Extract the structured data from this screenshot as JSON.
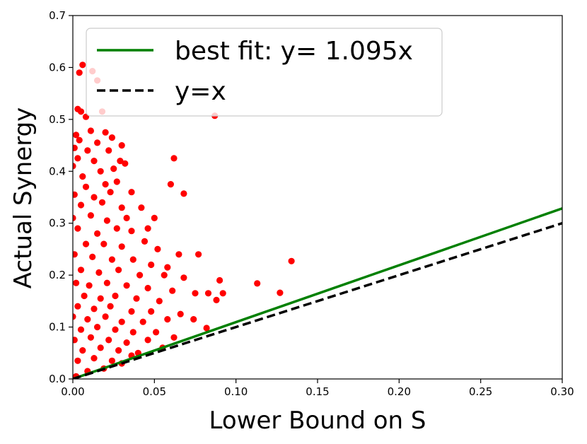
{
  "chart_data": {
    "type": "scatter",
    "xlabel": "Lower Bound on S",
    "ylabel": "Actual Synergy",
    "xlim": [
      0.0,
      0.3
    ],
    "ylim": [
      0.0,
      0.7
    ],
    "x_ticks": [
      "0.00",
      "0.05",
      "0.10",
      "0.15",
      "0.20",
      "0.25",
      "0.30"
    ],
    "y_ticks": [
      "0.0",
      "0.1",
      "0.2",
      "0.3",
      "0.4",
      "0.5",
      "0.6",
      "0.7"
    ],
    "grid": false,
    "legend_position": "top-left",
    "colors": {
      "points": "#ff0000",
      "best_fit": "#008000",
      "identity": "#000000"
    },
    "lines": [
      {
        "name": "best fit: y= 1.095x",
        "slope": 1.095,
        "style": "solid",
        "color": "#008000"
      },
      {
        "name": "y=x",
        "slope": 1.0,
        "style": "dashed",
        "color": "#000000"
      }
    ],
    "series": [
      {
        "name": "points",
        "color": "#ff0000",
        "points": [
          [
            0.006,
            0.605
          ],
          [
            0.004,
            0.59
          ],
          [
            0.012,
            0.593
          ],
          [
            0.015,
            0.575
          ],
          [
            0.003,
            0.52
          ],
          [
            0.005,
            0.515
          ],
          [
            0.018,
            0.515
          ],
          [
            0.008,
            0.505
          ],
          [
            0.002,
            0.47
          ],
          [
            0.011,
            0.478
          ],
          [
            0.02,
            0.475
          ],
          [
            0.004,
            0.46
          ],
          [
            0.024,
            0.465
          ],
          [
            0.001,
            0.445
          ],
          [
            0.009,
            0.44
          ],
          [
            0.022,
            0.44
          ],
          [
            0.03,
            0.45
          ],
          [
            0.015,
            0.455
          ],
          [
            0.003,
            0.425
          ],
          [
            0.013,
            0.42
          ],
          [
            0.029,
            0.42
          ],
          [
            0.0,
            0.41
          ],
          [
            0.006,
            0.39
          ],
          [
            0.017,
            0.4
          ],
          [
            0.025,
            0.405
          ],
          [
            0.032,
            0.415
          ],
          [
            0.062,
            0.425
          ],
          [
            0.008,
            0.37
          ],
          [
            0.02,
            0.375
          ],
          [
            0.027,
            0.38
          ],
          [
            0.06,
            0.375
          ],
          [
            0.001,
            0.355
          ],
          [
            0.013,
            0.35
          ],
          [
            0.023,
            0.36
          ],
          [
            0.036,
            0.36
          ],
          [
            0.068,
            0.357
          ],
          [
            0.005,
            0.335
          ],
          [
            0.018,
            0.34
          ],
          [
            0.03,
            0.33
          ],
          [
            0.042,
            0.33
          ],
          [
            0.0,
            0.31
          ],
          [
            0.011,
            0.315
          ],
          [
            0.021,
            0.305
          ],
          [
            0.033,
            0.31
          ],
          [
            0.05,
            0.31
          ],
          [
            0.003,
            0.29
          ],
          [
            0.015,
            0.28
          ],
          [
            0.027,
            0.29
          ],
          [
            0.036,
            0.285
          ],
          [
            0.046,
            0.29
          ],
          [
            0.008,
            0.26
          ],
          [
            0.019,
            0.26
          ],
          [
            0.03,
            0.255
          ],
          [
            0.044,
            0.265
          ],
          [
            0.052,
            0.25
          ],
          [
            0.065,
            0.24
          ],
          [
            0.077,
            0.24
          ],
          [
            0.001,
            0.24
          ],
          [
            0.012,
            0.235
          ],
          [
            0.024,
            0.23
          ],
          [
            0.037,
            0.23
          ],
          [
            0.048,
            0.22
          ],
          [
            0.058,
            0.215
          ],
          [
            0.134,
            0.227
          ],
          [
            0.005,
            0.21
          ],
          [
            0.016,
            0.205
          ],
          [
            0.028,
            0.21
          ],
          [
            0.041,
            0.2
          ],
          [
            0.056,
            0.2
          ],
          [
            0.068,
            0.195
          ],
          [
            0.09,
            0.19
          ],
          [
            0.002,
            0.185
          ],
          [
            0.01,
            0.18
          ],
          [
            0.021,
            0.185
          ],
          [
            0.033,
            0.18
          ],
          [
            0.046,
            0.175
          ],
          [
            0.061,
            0.17
          ],
          [
            0.075,
            0.165
          ],
          [
            0.113,
            0.184
          ],
          [
            0.007,
            0.16
          ],
          [
            0.017,
            0.155
          ],
          [
            0.026,
            0.16
          ],
          [
            0.039,
            0.155
          ],
          [
            0.053,
            0.15
          ],
          [
            0.083,
            0.165
          ],
          [
            0.092,
            0.165
          ],
          [
            0.127,
            0.166
          ],
          [
            0.003,
            0.14
          ],
          [
            0.013,
            0.135
          ],
          [
            0.023,
            0.14
          ],
          [
            0.036,
            0.13
          ],
          [
            0.048,
            0.13
          ],
          [
            0.066,
            0.125
          ],
          [
            0.088,
            0.152
          ],
          [
            0.0,
            0.12
          ],
          [
            0.009,
            0.115
          ],
          [
            0.02,
            0.12
          ],
          [
            0.03,
            0.11
          ],
          [
            0.043,
            0.11
          ],
          [
            0.058,
            0.115
          ],
          [
            0.074,
            0.115
          ],
          [
            0.005,
            0.095
          ],
          [
            0.015,
            0.1
          ],
          [
            0.026,
            0.095
          ],
          [
            0.037,
            0.09
          ],
          [
            0.051,
            0.09
          ],
          [
            0.082,
            0.098
          ],
          [
            0.001,
            0.075
          ],
          [
            0.011,
            0.08
          ],
          [
            0.022,
            0.075
          ],
          [
            0.033,
            0.07
          ],
          [
            0.046,
            0.075
          ],
          [
            0.062,
            0.08
          ],
          [
            0.006,
            0.055
          ],
          [
            0.017,
            0.06
          ],
          [
            0.028,
            0.055
          ],
          [
            0.04,
            0.05
          ],
          [
            0.055,
            0.06
          ],
          [
            0.003,
            0.035
          ],
          [
            0.013,
            0.04
          ],
          [
            0.024,
            0.035
          ],
          [
            0.036,
            0.045
          ],
          [
            0.009,
            0.015
          ],
          [
            0.019,
            0.02
          ],
          [
            0.03,
            0.03
          ],
          [
            0.002,
            0.005
          ],
          [
            0.087,
            0.507
          ]
        ]
      }
    ]
  }
}
